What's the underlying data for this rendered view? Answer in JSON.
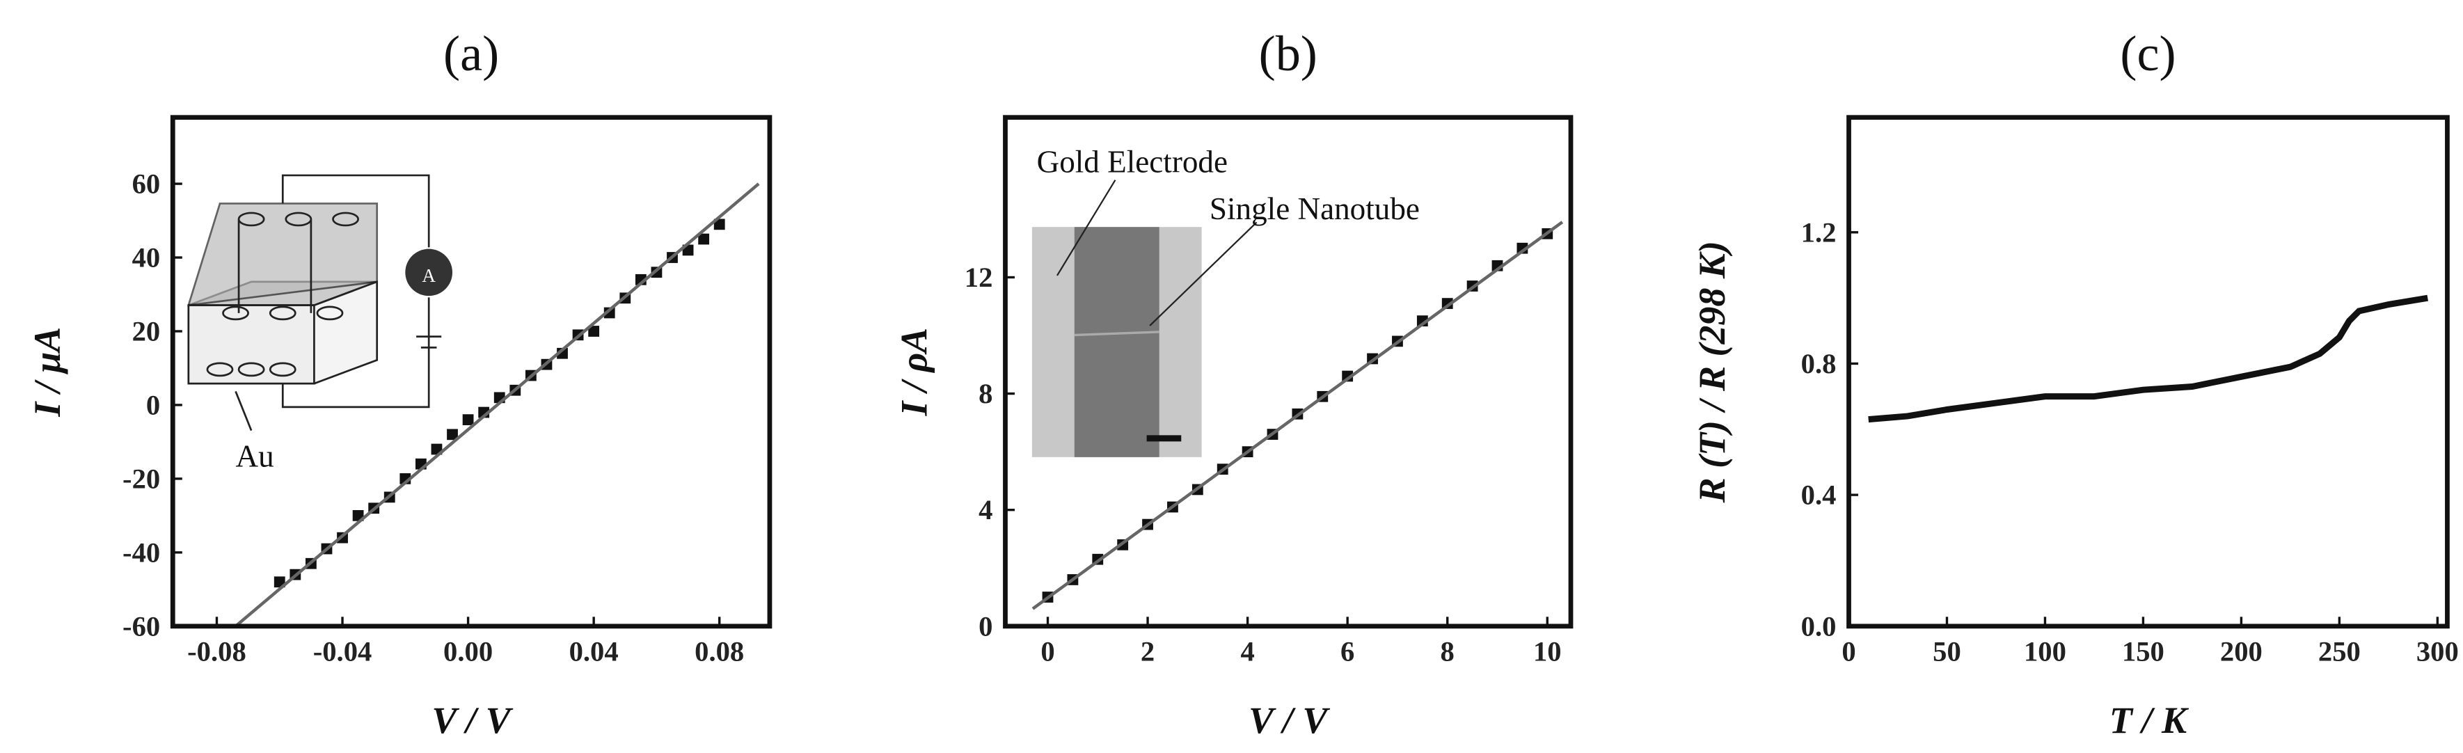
{
  "chart_data": [
    {
      "type": "scatter",
      "title": "(a)",
      "x_label": "V / V",
      "y_label": "I / μA",
      "xlim": [
        -0.094,
        0.096
      ],
      "ylim": [
        -60,
        78
      ],
      "xticks": [
        -0.08,
        -0.04,
        {
          "value": 0,
          "label": "0.00"
        },
        0.04,
        0.08
      ],
      "yticks": [
        -60,
        -40,
        -20,
        0,
        20,
        40,
        60
      ],
      "annotations": [
        "Au",
        "A"
      ],
      "series": [
        {
          "kind": "scatter",
          "color": "#111111",
          "x": [
            -0.06,
            -0.055,
            -0.05,
            -0.045,
            -0.04,
            -0.035,
            -0.03,
            -0.025,
            -0.02,
            -0.015,
            -0.01,
            -0.005,
            0,
            0.005,
            0.01,
            0.015,
            0.02,
            0.025,
            0.03,
            0.035,
            0.04,
            0.045,
            0.05,
            0.055,
            0.06,
            0.065,
            0.07,
            0.075,
            0.08
          ],
          "values": [
            -48,
            -46,
            -43,
            -39,
            -36,
            -30,
            -28,
            -25,
            -20,
            -16,
            -12,
            -8,
            -4,
            -2,
            2,
            4,
            8,
            11,
            14,
            19,
            20,
            25,
            29,
            34,
            36,
            40,
            42,
            45,
            49
          ]
        },
        {
          "kind": "line",
          "color": "#666666",
          "x": [
            -0.074,
            0.0925
          ],
          "values": [
            -60,
            60
          ]
        }
      ]
    },
    {
      "type": "scatter",
      "title": "(b)",
      "x_label": "V / V",
      "y_label": "I / ρA",
      "xlim": [
        -0.85,
        10.47
      ],
      "ylim": [
        0,
        17.5
      ],
      "xticks": [
        0,
        2,
        4,
        6,
        8,
        10
      ],
      "yticks": [
        0,
        4,
        8,
        12
      ],
      "annotations": [
        "Gold Electrode",
        "Single Nanotube"
      ],
      "series": [
        {
          "kind": "scatter",
          "color": "#111111",
          "x": [
            0,
            0.5,
            1,
            1.5,
            2,
            2.5,
            3,
            3.5,
            4,
            4.5,
            5,
            5.5,
            6,
            6.5,
            7,
            7.5,
            8,
            8.5,
            9,
            9.5,
            10
          ],
          "values": [
            1.0,
            1.6,
            2.3,
            2.8,
            3.5,
            4.1,
            4.7,
            5.4,
            6.0,
            6.6,
            7.3,
            7.9,
            8.6,
            9.2,
            9.8,
            10.5,
            11.1,
            11.7,
            12.4,
            13.0,
            13.5
          ]
        },
        {
          "kind": "line",
          "color": "#666666",
          "x": [
            -0.3,
            10.3
          ],
          "values": [
            0.6,
            13.9
          ]
        }
      ]
    },
    {
      "type": "line",
      "title": "(c)",
      "x_label": "T / K",
      "y_label": "R (T) / R (298 K)",
      "xlim": [
        0,
        305
      ],
      "ylim": [
        0,
        1.55
      ],
      "xticks": [
        0,
        50,
        100,
        150,
        200,
        250,
        300
      ],
      "yticks": [
        {
          "value": 0,
          "label": "0.0"
        },
        0.4,
        0.8,
        1.2
      ],
      "series": [
        {
          "kind": "line",
          "color": "#111111",
          "x": [
            10,
            30,
            50,
            75,
            100,
            125,
            150,
            175,
            200,
            225,
            240,
            250,
            255,
            260,
            275,
            295
          ],
          "values": [
            0.63,
            0.64,
            0.66,
            0.68,
            0.7,
            0.7,
            0.72,
            0.73,
            0.76,
            0.79,
            0.83,
            0.88,
            0.93,
            0.96,
            0.98,
            1.0
          ]
        }
      ]
    }
  ]
}
